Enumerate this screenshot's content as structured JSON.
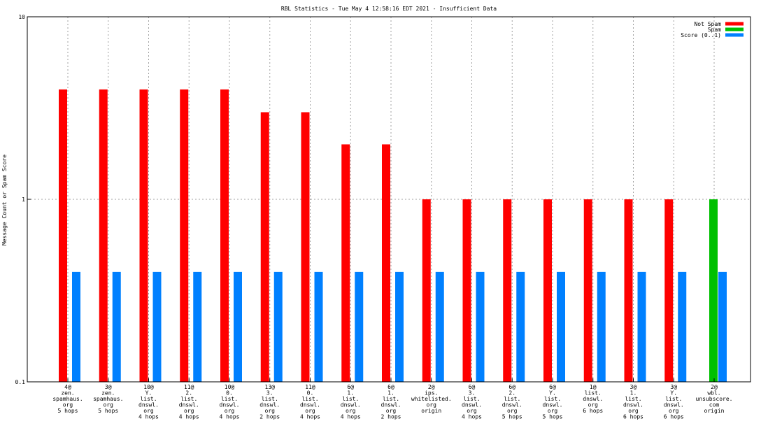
{
  "chart_data": {
    "type": "bar",
    "title": "RBL Statistics - Tue May  4 12:58:16 EDT 2021 - Insufficient Data",
    "ylabel": "Message Count or Spam Score",
    "xlabel": "",
    "yscale": "log",
    "ylim": [
      0.1,
      10
    ],
    "y_ticks": [
      "0.1",
      "1",
      "10"
    ],
    "grid": true,
    "legend_position": "top-right",
    "categories": [
      [
        "4@",
        "zen.",
        "spamhaus.",
        "org",
        "5 hops"
      ],
      [
        "3@",
        "zen.",
        "spamhaus.",
        "org",
        "5 hops"
      ],
      [
        "10@",
        "Y.",
        "list.",
        "dnswl.",
        "org",
        "4 hops"
      ],
      [
        "11@",
        "2.",
        "list.",
        "dnswl.",
        "org",
        "4 hops"
      ],
      [
        "10@",
        "0.",
        "list.",
        "dnswl.",
        "org",
        "4 hops"
      ],
      [
        "13@",
        "3.",
        "list.",
        "dnswl.",
        "org",
        "2 hops"
      ],
      [
        "11@",
        "0.",
        "list.",
        "dnswl.",
        "org",
        "4 hops"
      ],
      [
        "6@",
        "1.",
        "list.",
        "dnswl.",
        "org",
        "4 hops"
      ],
      [
        "6@",
        "1.",
        "list.",
        "dnswl.",
        "org",
        "2 hops"
      ],
      [
        "2@",
        "ips.",
        "whitelisted.",
        "org",
        "origin"
      ],
      [
        "6@",
        "3.",
        "list.",
        "dnswl.",
        "org",
        "4 hops"
      ],
      [
        "6@",
        "2.",
        "list.",
        "dnswl.",
        "org",
        "5 hops"
      ],
      [
        "6@",
        "Y.",
        "list.",
        "dnswl.",
        "org",
        "5 hops"
      ],
      [
        "1@",
        "list.",
        "dnswl.",
        "org",
        "6 hops"
      ],
      [
        "3@",
        "1.",
        "list.",
        "dnswl.",
        "org",
        "6 hops"
      ],
      [
        "3@",
        "Y.",
        "list.",
        "dnswl.",
        "org",
        "6 hops"
      ],
      [
        "2@",
        "wbl.",
        "unsubscore.",
        "com",
        "origin"
      ]
    ],
    "series": [
      {
        "name": "Not Spam",
        "color": "#ff0000",
        "values": [
          4,
          4,
          4,
          4,
          4,
          3,
          3,
          2,
          2,
          1,
          1,
          1,
          1,
          1,
          1,
          1,
          0
        ]
      },
      {
        "name": "Spam",
        "color": "#00c000",
        "values": [
          0,
          0,
          0,
          0,
          0,
          0,
          0,
          0,
          0,
          0,
          0,
          0,
          0,
          0,
          0,
          0,
          1
        ]
      },
      {
        "name": "Score (0..1)",
        "color": "#0080ff",
        "values": [
          0.4,
          0.4,
          0.4,
          0.4,
          0.4,
          0.4,
          0.4,
          0.4,
          0.4,
          0.4,
          0.4,
          0.4,
          0.4,
          0.4,
          0.4,
          0.4,
          0.4
        ]
      }
    ]
  }
}
